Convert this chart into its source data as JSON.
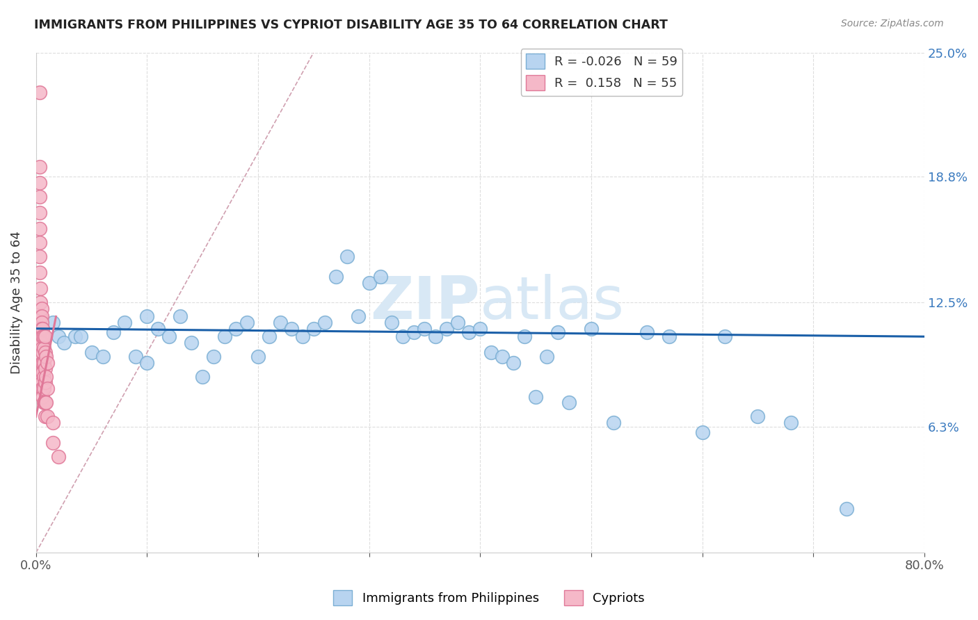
{
  "title": "IMMIGRANTS FROM PHILIPPINES VS CYPRIOT DISABILITY AGE 35 TO 64 CORRELATION CHART",
  "source": "Source: ZipAtlas.com",
  "ylabel": "Disability Age 35 to 64",
  "xlim": [
    0,
    0.8
  ],
  "ylim": [
    0,
    0.25
  ],
  "r_blue": -0.026,
  "n_blue": 59,
  "r_pink": 0.158,
  "n_pink": 55,
  "blue_color": "#b8d4f0",
  "pink_color": "#f5b8c8",
  "blue_edge": "#7bafd4",
  "pink_edge": "#e07898",
  "trend_blue": "#1a5fa8",
  "trend_pink": "#e07898",
  "diag_color": "#d0a0b0",
  "diag_style": "--",
  "watermark_color": "#d8e8f5",
  "blue_trend_x0": 0.0,
  "blue_trend_x1": 0.8,
  "blue_trend_y0": 0.112,
  "blue_trend_y1": 0.108,
  "pink_trend_x0": 0.0,
  "pink_trend_x1": 0.018,
  "pink_trend_y0": 0.068,
  "pink_trend_y1": 0.118,
  "blue_x": [
    0.015,
    0.02,
    0.025,
    0.035,
    0.04,
    0.05,
    0.06,
    0.07,
    0.08,
    0.09,
    0.1,
    0.1,
    0.11,
    0.12,
    0.13,
    0.14,
    0.15,
    0.16,
    0.17,
    0.18,
    0.19,
    0.2,
    0.21,
    0.22,
    0.23,
    0.24,
    0.25,
    0.26,
    0.27,
    0.28,
    0.29,
    0.3,
    0.31,
    0.32,
    0.33,
    0.34,
    0.35,
    0.36,
    0.37,
    0.38,
    0.39,
    0.4,
    0.41,
    0.42,
    0.43,
    0.44,
    0.45,
    0.46,
    0.47,
    0.48,
    0.5,
    0.52,
    0.55,
    0.57,
    0.6,
    0.62,
    0.65,
    0.68,
    0.73
  ],
  "blue_y": [
    0.115,
    0.108,
    0.105,
    0.108,
    0.108,
    0.1,
    0.098,
    0.11,
    0.115,
    0.098,
    0.118,
    0.095,
    0.112,
    0.108,
    0.118,
    0.105,
    0.088,
    0.098,
    0.108,
    0.112,
    0.115,
    0.098,
    0.108,
    0.115,
    0.112,
    0.108,
    0.112,
    0.115,
    0.138,
    0.148,
    0.118,
    0.135,
    0.138,
    0.115,
    0.108,
    0.11,
    0.112,
    0.108,
    0.112,
    0.115,
    0.11,
    0.112,
    0.1,
    0.098,
    0.095,
    0.108,
    0.078,
    0.098,
    0.11,
    0.075,
    0.112,
    0.065,
    0.11,
    0.108,
    0.06,
    0.108,
    0.068,
    0.065,
    0.022
  ],
  "pink_x": [
    0.003,
    0.003,
    0.003,
    0.003,
    0.003,
    0.003,
    0.003,
    0.003,
    0.003,
    0.004,
    0.004,
    0.004,
    0.004,
    0.004,
    0.005,
    0.005,
    0.005,
    0.005,
    0.005,
    0.005,
    0.005,
    0.005,
    0.005,
    0.005,
    0.005,
    0.005,
    0.005,
    0.006,
    0.006,
    0.006,
    0.006,
    0.006,
    0.006,
    0.006,
    0.007,
    0.007,
    0.007,
    0.007,
    0.007,
    0.007,
    0.008,
    0.008,
    0.008,
    0.008,
    0.008,
    0.008,
    0.009,
    0.009,
    0.009,
    0.01,
    0.01,
    0.01,
    0.015,
    0.015,
    0.02
  ],
  "pink_y": [
    0.23,
    0.193,
    0.185,
    0.178,
    0.17,
    0.162,
    0.155,
    0.148,
    0.14,
    0.132,
    0.125,
    0.118,
    0.112,
    0.105,
    0.122,
    0.118,
    0.115,
    0.112,
    0.108,
    0.105,
    0.102,
    0.098,
    0.095,
    0.09,
    0.088,
    0.085,
    0.082,
    0.112,
    0.108,
    0.1,
    0.095,
    0.09,
    0.082,
    0.078,
    0.108,
    0.102,
    0.095,
    0.088,
    0.082,
    0.075,
    0.108,
    0.1,
    0.092,
    0.085,
    0.075,
    0.068,
    0.098,
    0.088,
    0.075,
    0.095,
    0.082,
    0.068,
    0.065,
    0.055,
    0.048
  ]
}
